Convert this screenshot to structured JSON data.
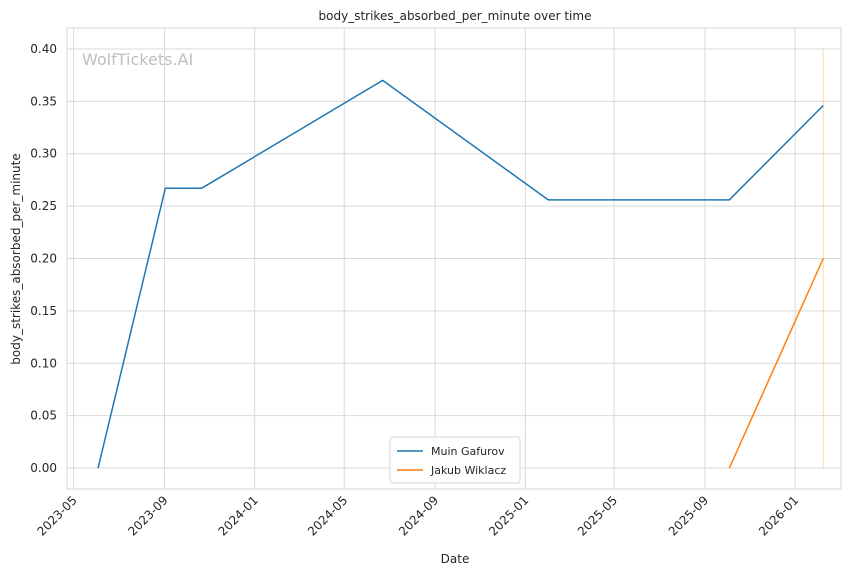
{
  "chart_data": {
    "type": "line",
    "title": "body_strikes_absorbed_per_minute over time",
    "xlabel": "Date",
    "ylabel": "body_strikes_absorbed_per_minute",
    "watermark": "WolfTickets.AI",
    "x_ticks": [
      "2023-05",
      "2023-09",
      "2024-01",
      "2024-05",
      "2024-09",
      "2025-01",
      "2025-05",
      "2025-09",
      "2026-01"
    ],
    "y_ticks": [
      "0.00",
      "0.05",
      "0.10",
      "0.15",
      "0.20",
      "0.25",
      "0.30",
      "0.35",
      "0.40"
    ],
    "xlim": [
      "2023-04-22",
      "2026-03-04"
    ],
    "ylim": [
      -0.02,
      0.42
    ],
    "grid": true,
    "legend_position": "bottom-center",
    "series": [
      {
        "name": "Muin Gafurov",
        "color": "#1f77b4",
        "points": [
          {
            "x": "2023-06-03",
            "y": 0.0
          },
          {
            "x": "2023-09-02",
            "y": 0.267
          },
          {
            "x": "2023-10-21",
            "y": 0.267
          },
          {
            "x": "2024-06-22",
            "y": 0.37
          },
          {
            "x": "2025-02-01",
            "y": 0.256
          },
          {
            "x": "2025-10-04",
            "y": 0.256
          },
          {
            "x": "2026-02-08",
            "y": 0.346
          }
        ]
      },
      {
        "name": "Jakub Wiklacz",
        "color": "#ff7f0e",
        "points": [
          {
            "x": "2025-10-04",
            "y": 0.0
          },
          {
            "x": "2026-02-08",
            "y": 0.2
          }
        ]
      }
    ],
    "annotation_line": {
      "x": "2026-02-08",
      "y_range": [
        0.0,
        0.4
      ],
      "color": "#ff7f0e"
    }
  }
}
